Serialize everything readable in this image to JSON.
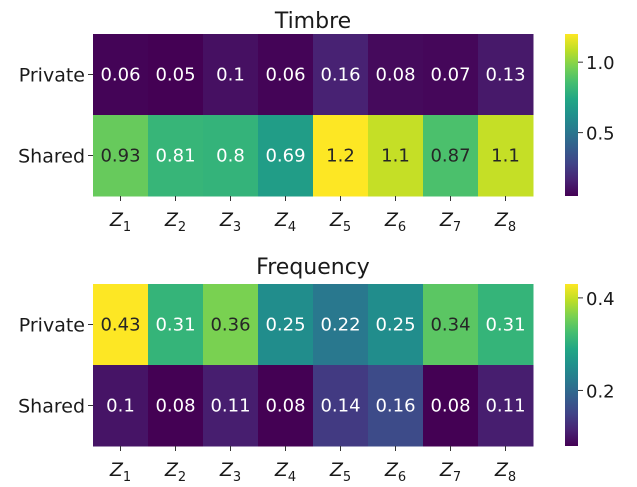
{
  "chart_data": [
    {
      "type": "heatmap",
      "title": "Timbre",
      "rows": [
        "Private",
        "Shared"
      ],
      "columns": [
        {
          "base": "Z",
          "sub": "1"
        },
        {
          "base": "Z",
          "sub": "2"
        },
        {
          "base": "Z",
          "sub": "3"
        },
        {
          "base": "Z",
          "sub": "4"
        },
        {
          "base": "Z",
          "sub": "5"
        },
        {
          "base": "Z",
          "sub": "6"
        },
        {
          "base": "Z",
          "sub": "7"
        },
        {
          "base": "Z",
          "sub": "8"
        }
      ],
      "values": [
        [
          0.06,
          0.05,
          0.1,
          0.06,
          0.16,
          0.08,
          0.07,
          0.13
        ],
        [
          0.93,
          0.81,
          0.8,
          0.69,
          1.2,
          1.1,
          0.87,
          1.1
        ]
      ],
      "labels": [
        [
          "0.06",
          "0.05",
          "0.1",
          "0.06",
          "0.16",
          "0.08",
          "0.07",
          "0.13"
        ],
        [
          "0.93",
          "0.81",
          "0.8",
          "0.69",
          "1.2",
          "1.1",
          "0.87",
          "1.1"
        ]
      ],
      "colormap": "viridis",
      "color_range": [
        0.05,
        1.2
      ],
      "colorbar_ticks": [
        {
          "value": 0.5,
          "label": "0.5"
        },
        {
          "value": 1.0,
          "label": "1.0"
        }
      ]
    },
    {
      "type": "heatmap",
      "title": "Frequency",
      "rows": [
        "Private",
        "Shared"
      ],
      "columns": [
        {
          "base": "Z",
          "sub": "1"
        },
        {
          "base": "Z",
          "sub": "2"
        },
        {
          "base": "Z",
          "sub": "3"
        },
        {
          "base": "Z",
          "sub": "4"
        },
        {
          "base": "Z",
          "sub": "5"
        },
        {
          "base": "Z",
          "sub": "6"
        },
        {
          "base": "Z",
          "sub": "7"
        },
        {
          "base": "Z",
          "sub": "8"
        }
      ],
      "values": [
        [
          0.43,
          0.31,
          0.36,
          0.25,
          0.22,
          0.25,
          0.34,
          0.31
        ],
        [
          0.1,
          0.08,
          0.11,
          0.08,
          0.14,
          0.16,
          0.08,
          0.11
        ]
      ],
      "labels": [
        [
          "0.43",
          "0.31",
          "0.36",
          "0.25",
          "0.22",
          "0.25",
          "0.34",
          "0.31"
        ],
        [
          "0.1",
          "0.08",
          "0.11",
          "0.08",
          "0.14",
          "0.16",
          "0.08",
          "0.11"
        ]
      ],
      "colormap": "viridis",
      "color_range": [
        0.08,
        0.43
      ],
      "colorbar_ticks": [
        {
          "value": 0.2,
          "label": "0.2"
        },
        {
          "value": 0.4,
          "label": "0.4"
        }
      ]
    }
  ]
}
